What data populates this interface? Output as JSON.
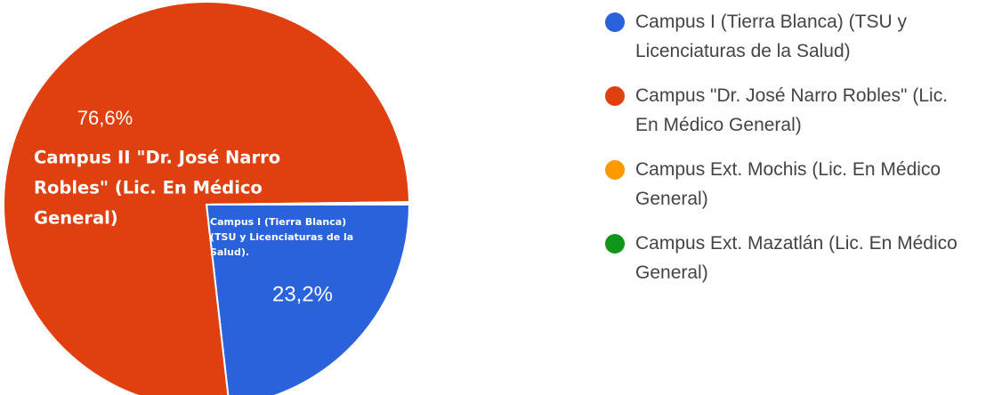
{
  "chart_data": {
    "type": "pie",
    "start_angle": 90,
    "series": [
      {
        "name": "Campus I (Tierra Blanca) (TSU y Licenciaturas de la Salud)",
        "color": "#2a62db",
        "values": [
          23.2
        ]
      },
      {
        "name": "Campus \"Dr. José Narro Robles\" (Lic. En Médico General)",
        "color": "#e0400f",
        "values": [
          76.6
        ]
      },
      {
        "name": "Campus Ext. Mochis (Lic. En Médico General)",
        "color": "#ff9900",
        "values": [
          0.1
        ]
      },
      {
        "name": "Campus Ext. Mazatlán (Lic. En Médico General)",
        "color": "#109618",
        "values": [
          0.1
        ]
      }
    ],
    "value_labels": [
      "23,2%",
      "76,6%",
      null,
      null
    ],
    "slice_labels": [
      [
        "Campus I (Tierra Blanca)",
        "(TSU y Licenciaturas de la",
        "Salud)."
      ],
      [
        "Campus II \"Dr. José Narro",
        "Robles\" (Lic. En Médico",
        "General)"
      ],
      null,
      null
    ]
  }
}
